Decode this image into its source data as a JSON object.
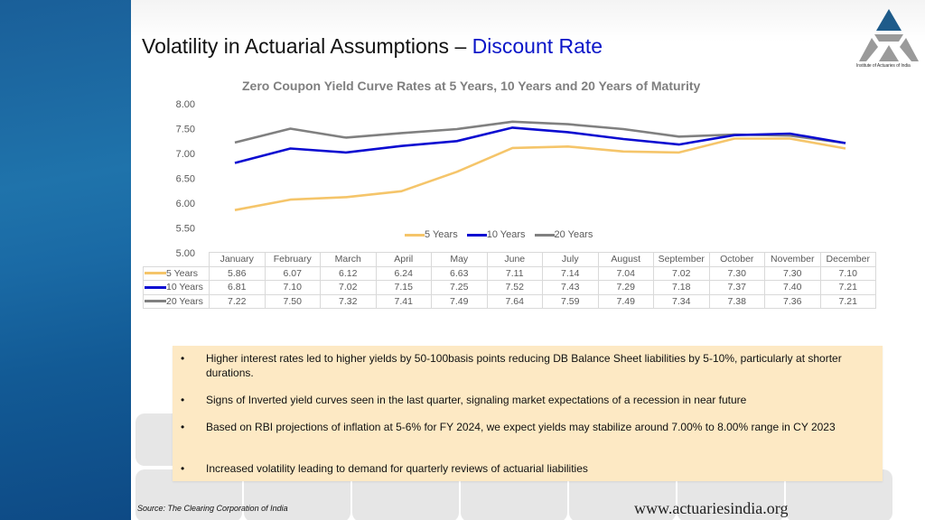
{
  "slide": {
    "title_main": "Volatility in Actuarial Assumptions – ",
    "title_accent": "Discount Rate",
    "logo_caption": "Institute of Actuaries of India",
    "source": "Source: The Clearing Corporation of India",
    "website": "www.actuariesindia.org"
  },
  "colors": {
    "series_5y": "#f5c56a",
    "series_10y": "#0b0bd1",
    "series_20y": "#808080",
    "title_accent": "#0b16c8",
    "bullet_box": "#fde9c4",
    "side_panel": "#1a6aa5"
  },
  "chart_data": {
    "type": "line",
    "title": "Zero Coupon Yield Curve Rates at 5 Years, 10 Years and 20 Years of Maturity",
    "xlabel": "",
    "ylabel": "",
    "ylim": [
      5.0,
      8.0
    ],
    "yticks": [
      "8.00",
      "7.50",
      "7.00",
      "6.50",
      "6.00",
      "5.50",
      "5.00"
    ],
    "grid": false,
    "legend_position": "bottom-center inside plot",
    "categories": [
      "January",
      "February",
      "March",
      "April",
      "May",
      "June",
      "July",
      "August",
      "September",
      "October",
      "November",
      "December"
    ],
    "series": [
      {
        "name": "5 Years",
        "color": "#f5c56a",
        "values": [
          5.86,
          6.07,
          6.12,
          6.24,
          6.63,
          7.11,
          7.14,
          7.04,
          7.02,
          7.3,
          7.3,
          7.1
        ]
      },
      {
        "name": "10 Years",
        "color": "#0b0bd1",
        "values": [
          6.81,
          7.1,
          7.02,
          7.15,
          7.25,
          7.52,
          7.43,
          7.29,
          7.18,
          7.37,
          7.4,
          7.21
        ]
      },
      {
        "name": "20 Years",
        "color": "#808080",
        "values": [
          7.22,
          7.5,
          7.32,
          7.41,
          7.49,
          7.64,
          7.59,
          7.49,
          7.34,
          7.38,
          7.36,
          7.21
        ]
      }
    ],
    "data_table": {
      "months": [
        "January",
        "February",
        "March",
        "April",
        "May",
        "June",
        "July",
        "August",
        "September",
        "October",
        "November",
        "December"
      ],
      "rows": [
        {
          "label": "5 Years",
          "values": [
            "5.86",
            "6.07",
            "6.12",
            "6.24",
            "6.63",
            "7.11",
            "7.14",
            "7.04",
            "7.02",
            "7.30",
            "7.30",
            "7.10"
          ]
        },
        {
          "label": "10 Years",
          "values": [
            "6.81",
            "7.10",
            "7.02",
            "7.15",
            "7.25",
            "7.52",
            "7.43",
            "7.29",
            "7.18",
            "7.37",
            "7.40",
            "7.21"
          ]
        },
        {
          "label": "20 Years",
          "values": [
            "7.22",
            "7.50",
            "7.32",
            "7.41",
            "7.49",
            "7.64",
            "7.59",
            "7.49",
            "7.34",
            "7.38",
            "7.36",
            "7.21"
          ]
        }
      ]
    }
  },
  "bullets": [
    {
      "marker": "•",
      "text": "Higher interest rates led to higher yields by 50-100basis points reducing DB Balance Sheet liabilities by 5-10%, particularly at shorter durations."
    },
    {
      "marker": "•",
      "text": "Signs of Inverted yield curves seen in the last quarter, signaling market expectations of a recession in near future"
    },
    {
      "marker": "•",
      "text": "Based on RBI projections of inflation at 5-6% for FY 2024, we expect yields may stabilize around 7.00% to 8.00% range in CY 2023"
    },
    {
      "marker": "•",
      "text": "Increased volatility leading to demand for quarterly reviews of actuarial liabilities"
    }
  ]
}
